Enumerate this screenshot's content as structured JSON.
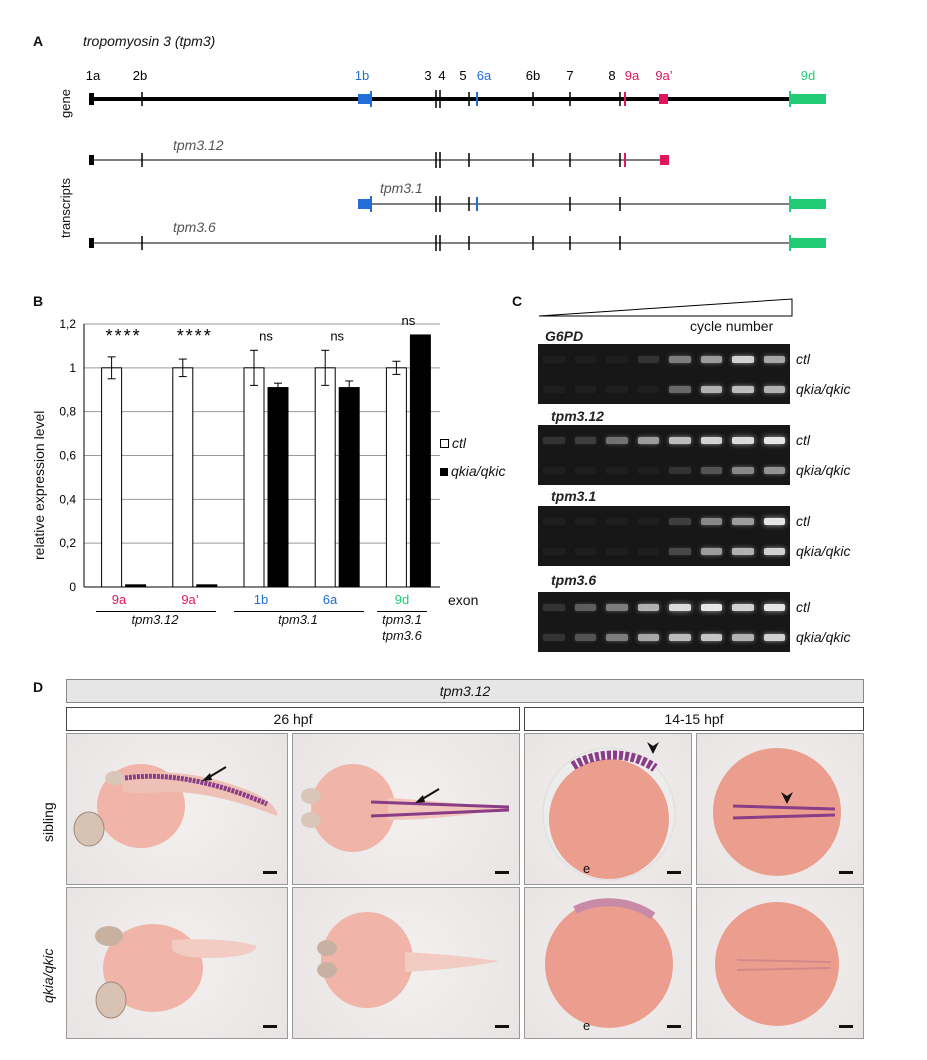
{
  "panel_a": {
    "letter": "A",
    "title": "tropomyosin 3 (tpm3)",
    "track_gene": "gene",
    "track_transcripts": "transcripts",
    "exons": [
      {
        "label": "1a",
        "color": "#000000"
      },
      {
        "label": "2b",
        "color": "#000000"
      },
      {
        "label": "1b",
        "color": "#1f6fd6"
      },
      {
        "label": "3",
        "color": "#000000"
      },
      {
        "label": "4",
        "color": "#000000"
      },
      {
        "label": "5",
        "color": "#000000"
      },
      {
        "label": "6a",
        "color": "#1f6fd6"
      },
      {
        "label": "6b",
        "color": "#000000"
      },
      {
        "label": "7",
        "color": "#000000"
      },
      {
        "label": "8",
        "color": "#000000"
      },
      {
        "label": "9a",
        "color": "#e0155e"
      },
      {
        "label": "9a’",
        "color": "#e0155e"
      },
      {
        "label": "9d",
        "color": "#22cc77"
      }
    ],
    "transcripts": [
      "tpm3.12",
      "tpm3.1",
      "tpm3.6"
    ]
  },
  "panel_b": {
    "letter": "B",
    "y_axis_label": "relative expression level",
    "x_axis_label": "exon",
    "legend": [
      {
        "label": "ctl",
        "fill": "#ffffff"
      },
      {
        "label": "qkia/qkic",
        "fill": "#000000"
      }
    ],
    "significance": [
      "****",
      "****",
      "ns",
      "ns",
      "ns"
    ],
    "exon_labels": [
      {
        "label": "9a",
        "color": "#e0155e"
      },
      {
        "label": "9a’",
        "color": "#e0155e"
      },
      {
        "label": "1b",
        "color": "#1f6fd6"
      },
      {
        "label": "6a",
        "color": "#1f6fd6"
      },
      {
        "label": "9d",
        "color": "#22cc77"
      }
    ],
    "group_labels": [
      "tpm3.12",
      "tpm3.1",
      "tpm3.1",
      "tpm3.6"
    ]
  },
  "chart_data": {
    "type": "bar",
    "categories": [
      "9a",
      "9a’",
      "1b",
      "6a",
      "9d"
    ],
    "series": [
      {
        "name": "ctl",
        "values": [
          1.0,
          1.0,
          1.0,
          1.0,
          1.0
        ],
        "errors": [
          0.05,
          0.04,
          0.08,
          0.08,
          0.03
        ]
      },
      {
        "name": "qkia/qkic",
        "values": [
          0.01,
          0.01,
          0.91,
          0.91,
          1.15
        ],
        "errors": [
          0.0,
          0.0,
          0.02,
          0.03,
          0.0
        ]
      }
    ],
    "ylim": [
      0,
      1.2
    ],
    "yticks": [
      "0",
      "0,2",
      "0,4",
      "0,6",
      "0,8",
      "1",
      "1,2"
    ],
    "ylabel": "relative expression level",
    "xlabel": "exon",
    "grid": true,
    "legend_position": "right"
  },
  "panel_c": {
    "letter": "C",
    "cycle_label": "cycle number",
    "genes": [
      {
        "name": "G6PD",
        "rows": [
          {
            "label": "ctl",
            "levels": [
              0,
              0,
              0,
              0.1,
              0.45,
              0.6,
              0.85,
              0.65
            ]
          },
          {
            "label": "qkia/qkic",
            "levels": [
              0,
              0,
              0,
              0,
              0.35,
              0.7,
              0.75,
              0.7
            ]
          }
        ]
      },
      {
        "name": "tpm3.12",
        "rows": [
          {
            "label": "ctl",
            "levels": [
              0.1,
              0.15,
              0.4,
              0.6,
              0.75,
              0.85,
              0.9,
              0.95
            ]
          },
          {
            "label": "qkia/qkic",
            "levels": [
              0,
              0,
              0,
              0,
              0.1,
              0.25,
              0.5,
              0.55
            ]
          }
        ]
      },
      {
        "name": "tpm3.1",
        "rows": [
          {
            "label": "ctl",
            "levels": [
              0,
              0,
              0,
              0,
              0.15,
              0.5,
              0.6,
              0.95
            ]
          },
          {
            "label": "qkia/qkic",
            "levels": [
              0,
              0,
              0,
              0,
              0.2,
              0.6,
              0.7,
              0.85
            ]
          }
        ]
      },
      {
        "name": "tpm3.6",
        "rows": [
          {
            "label": "ctl",
            "levels": [
              0.1,
              0.3,
              0.45,
              0.7,
              0.9,
              0.95,
              0.85,
              0.95
            ]
          },
          {
            "label": "qkia/qkic",
            "levels": [
              0.1,
              0.25,
              0.45,
              0.65,
              0.75,
              0.8,
              0.7,
              0.85
            ]
          }
        ]
      }
    ]
  },
  "panel_d": {
    "letter": "D",
    "header": "tpm3.12",
    "stage_left": "26 hpf",
    "stage_right": "14-15 hpf",
    "row_sibling": "sibling",
    "row_mutant": "qkia/qkic",
    "e_label": "e"
  }
}
